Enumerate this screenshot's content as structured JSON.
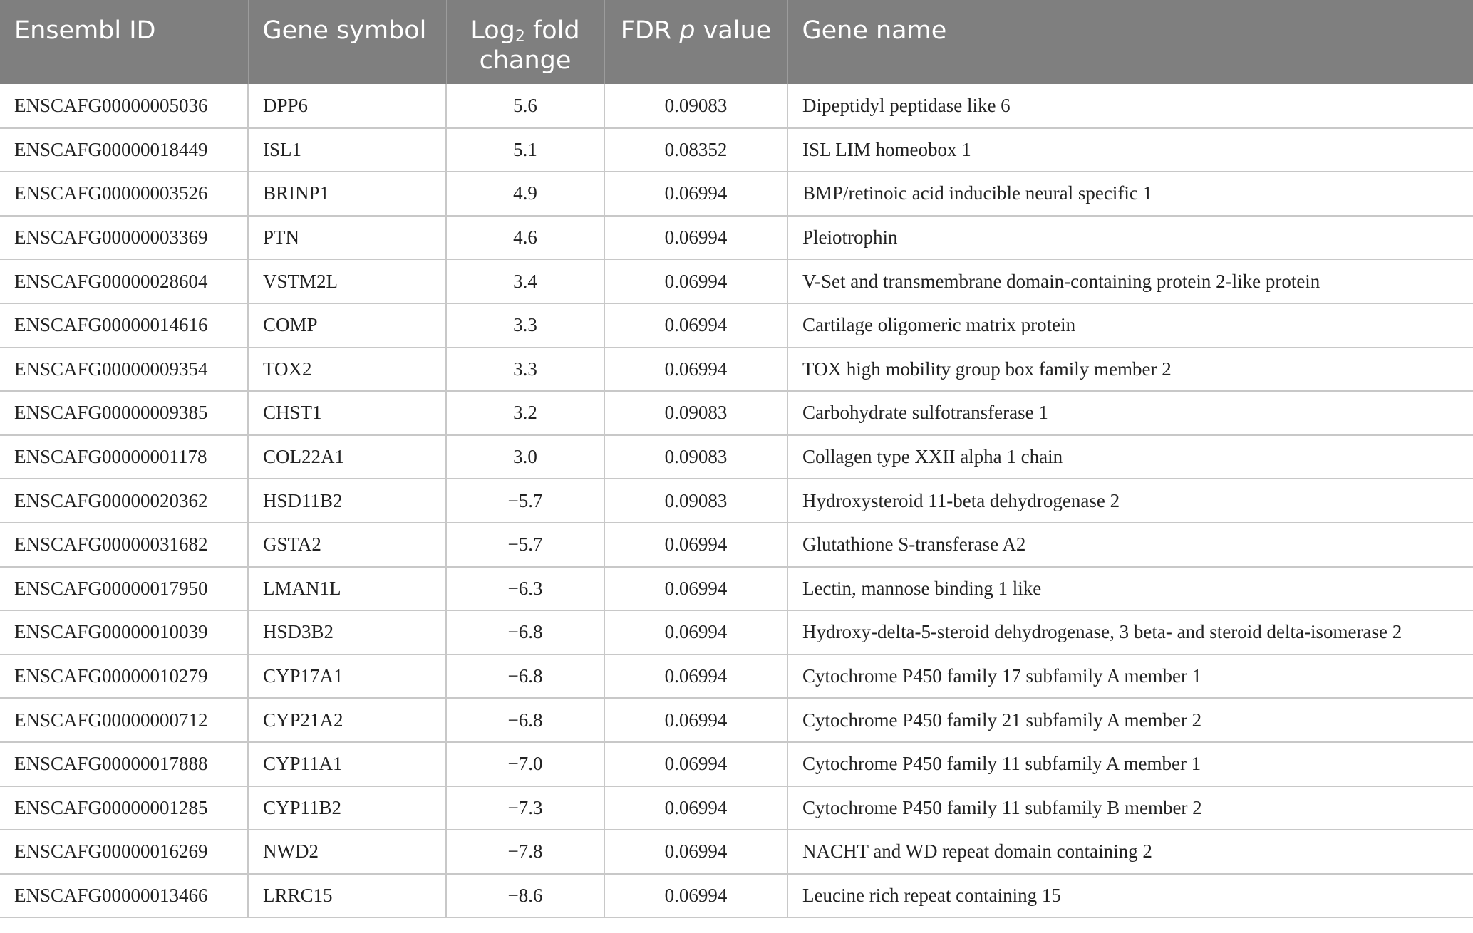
{
  "header": {
    "ensembl_id": "Ensembl ID",
    "gene_symbol": "Gene symbol",
    "log2_prefix": "Log",
    "log2_sub": "2",
    "log2_suffix": " fold change",
    "fdr_prefix": "FDR ",
    "fdr_italic": "p",
    "fdr_suffix": " value",
    "gene_name": "Gene name"
  },
  "rows": [
    {
      "id": "ENSCAFG00000005036",
      "symbol": "DPP6",
      "fc": "5.6",
      "fdr": "0.09083",
      "name": "Dipeptidyl peptidase like 6"
    },
    {
      "id": "ENSCAFG00000018449",
      "symbol": "ISL1",
      "fc": "5.1",
      "fdr": "0.08352",
      "name": "ISL LIM homeobox 1"
    },
    {
      "id": "ENSCAFG00000003526",
      "symbol": "BRINP1",
      "fc": "4.9",
      "fdr": "0.06994",
      "name": "BMP/retinoic acid inducible neural specific 1"
    },
    {
      "id": "ENSCAFG00000003369",
      "symbol": "PTN",
      "fc": "4.6",
      "fdr": "0.06994",
      "name": "Pleiotrophin"
    },
    {
      "id": "ENSCAFG00000028604",
      "symbol": "VSTM2L",
      "fc": "3.4",
      "fdr": "0.06994",
      "name": "V-Set and transmembrane domain-containing protein 2-like protein"
    },
    {
      "id": "ENSCAFG00000014616",
      "symbol": "COMP",
      "fc": "3.3",
      "fdr": "0.06994",
      "name": "Cartilage oligomeric matrix protein"
    },
    {
      "id": "ENSCAFG00000009354",
      "symbol": "TOX2",
      "fc": "3.3",
      "fdr": "0.06994",
      "name": "TOX high mobility group box family member 2"
    },
    {
      "id": "ENSCAFG00000009385",
      "symbol": "CHST1",
      "fc": "3.2",
      "fdr": "0.09083",
      "name": "Carbohydrate sulfotransferase 1"
    },
    {
      "id": "ENSCAFG00000001178",
      "symbol": "COL22A1",
      "fc": "3.0",
      "fdr": "0.09083",
      "name": "Collagen type XXII alpha 1 chain"
    },
    {
      "id": "ENSCAFG00000020362",
      "symbol": "HSD11B2",
      "fc": "−5.7",
      "fdr": "0.09083",
      "name": "Hydroxysteroid 11-beta dehydrogenase 2"
    },
    {
      "id": "ENSCAFG00000031682",
      "symbol": "GSTA2",
      "fc": "−5.7",
      "fdr": "0.06994",
      "name": "Glutathione S-transferase A2"
    },
    {
      "id": "ENSCAFG00000017950",
      "symbol": "LMAN1L",
      "fc": "−6.3",
      "fdr": "0.06994",
      "name": "Lectin, mannose binding 1 like"
    },
    {
      "id": "ENSCAFG00000010039",
      "symbol": "HSD3B2",
      "fc": "−6.8",
      "fdr": "0.06994",
      "name": "Hydroxy-delta-5-steroid dehydrogenase, 3 beta- and steroid delta-isomerase 2"
    },
    {
      "id": "ENSCAFG00000010279",
      "symbol": "CYP17A1",
      "fc": "−6.8",
      "fdr": "0.06994",
      "name": "Cytochrome P450 family 17 subfamily A member 1"
    },
    {
      "id": "ENSCAFG00000000712",
      "symbol": "CYP21A2",
      "fc": "−6.8",
      "fdr": "0.06994",
      "name": "Cytochrome P450 family 21 subfamily A member 2"
    },
    {
      "id": "ENSCAFG00000017888",
      "symbol": "CYP11A1",
      "fc": "−7.0",
      "fdr": "0.06994",
      "name": "Cytochrome P450 family 11 subfamily A member 1"
    },
    {
      "id": "ENSCAFG00000001285",
      "symbol": "CYP11B2",
      "fc": "−7.3",
      "fdr": "0.06994",
      "name": "Cytochrome P450 family 11 subfamily B member 2"
    },
    {
      "id": "ENSCAFG00000016269",
      "symbol": "NWD2",
      "fc": "−7.8",
      "fdr": "0.06994",
      "name": "NACHT and WD repeat domain containing 2"
    },
    {
      "id": "ENSCAFG00000013466",
      "symbol": "LRRC15",
      "fc": "−8.6",
      "fdr": "0.06994",
      "name": "Leucine rich repeat containing 15"
    }
  ]
}
